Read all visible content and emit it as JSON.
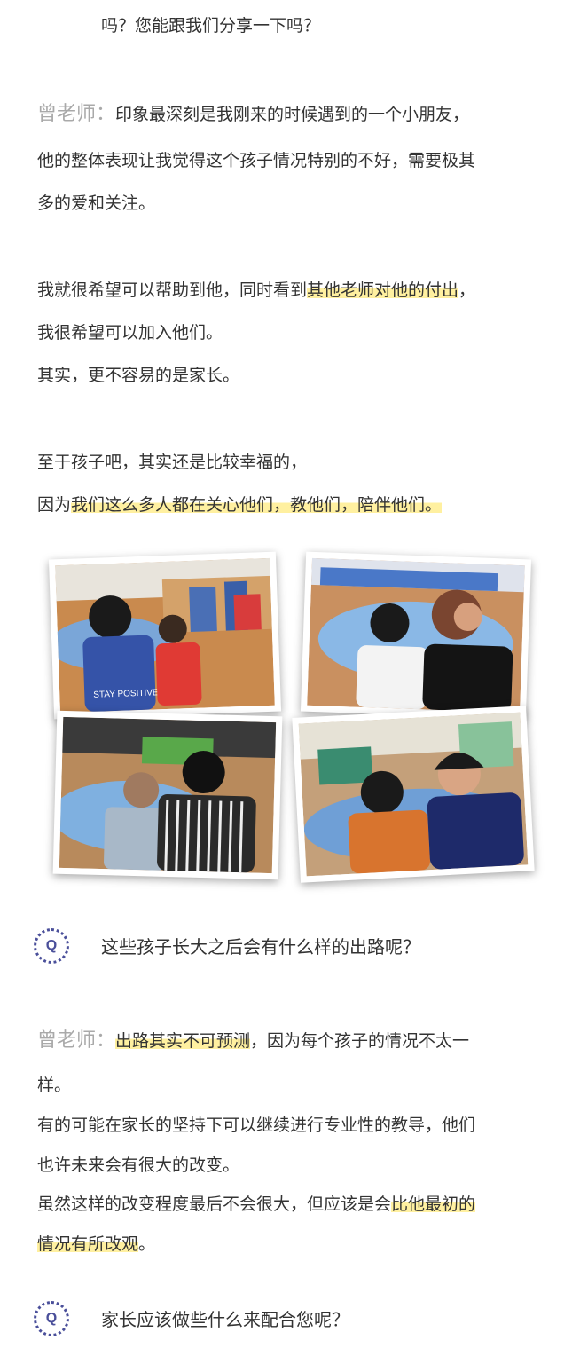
{
  "intro": {
    "tail": "吗？您能跟我们分享一下吗？"
  },
  "answer1": {
    "speaker": "曾老师：",
    "p1_line1": "印象最深刻是我刚来的时候遇到的一个小朋友，",
    "p1_line2": "他的整体表现让我觉得这个孩子情况特别的不好，需要极其",
    "p1_line3": "多的爱和关注。",
    "p2_line1_pre": "我就很希望可以帮助到他，同时看到",
    "p2_line1_hl": "其他老师对他的付出",
    "p2_line1_post": "，",
    "p2_line2": "我很希望可以加入他们。",
    "p2_line3": "其实，更不容易的是家长。",
    "p3_line1": "至于孩子吧，其实还是比较幸福的，",
    "p3_line2_pre": "因为",
    "p3_line2_hl": "我们这么多人都在关心他们，教他们，陪伴他们。"
  },
  "photos": {
    "shirt_text": "STAY POSITIVE"
  },
  "question2": {
    "badge": "Q",
    "text": "这些孩子长大之后会有什么样的出路呢？"
  },
  "answer2": {
    "speaker": "曾老师：",
    "line1_hl": "出路其实不可预测",
    "line1_post": "，因为每个孩子的情况不太一",
    "line2": "样。",
    "line3": "有的可能在家长的坚持下可以继续进行专业性的教导，他们",
    "line4": "也许未来会有很大的改变。",
    "line5_pre": "虽然这样的改变程度最后不会很大，但应该是会",
    "line5_hl": "比他最初的",
    "line6_hl": "情况有所改观",
    "line6_post": "。"
  },
  "question3": {
    "badge": "Q",
    "text": "家长应该做些什么来配合您呢？"
  }
}
